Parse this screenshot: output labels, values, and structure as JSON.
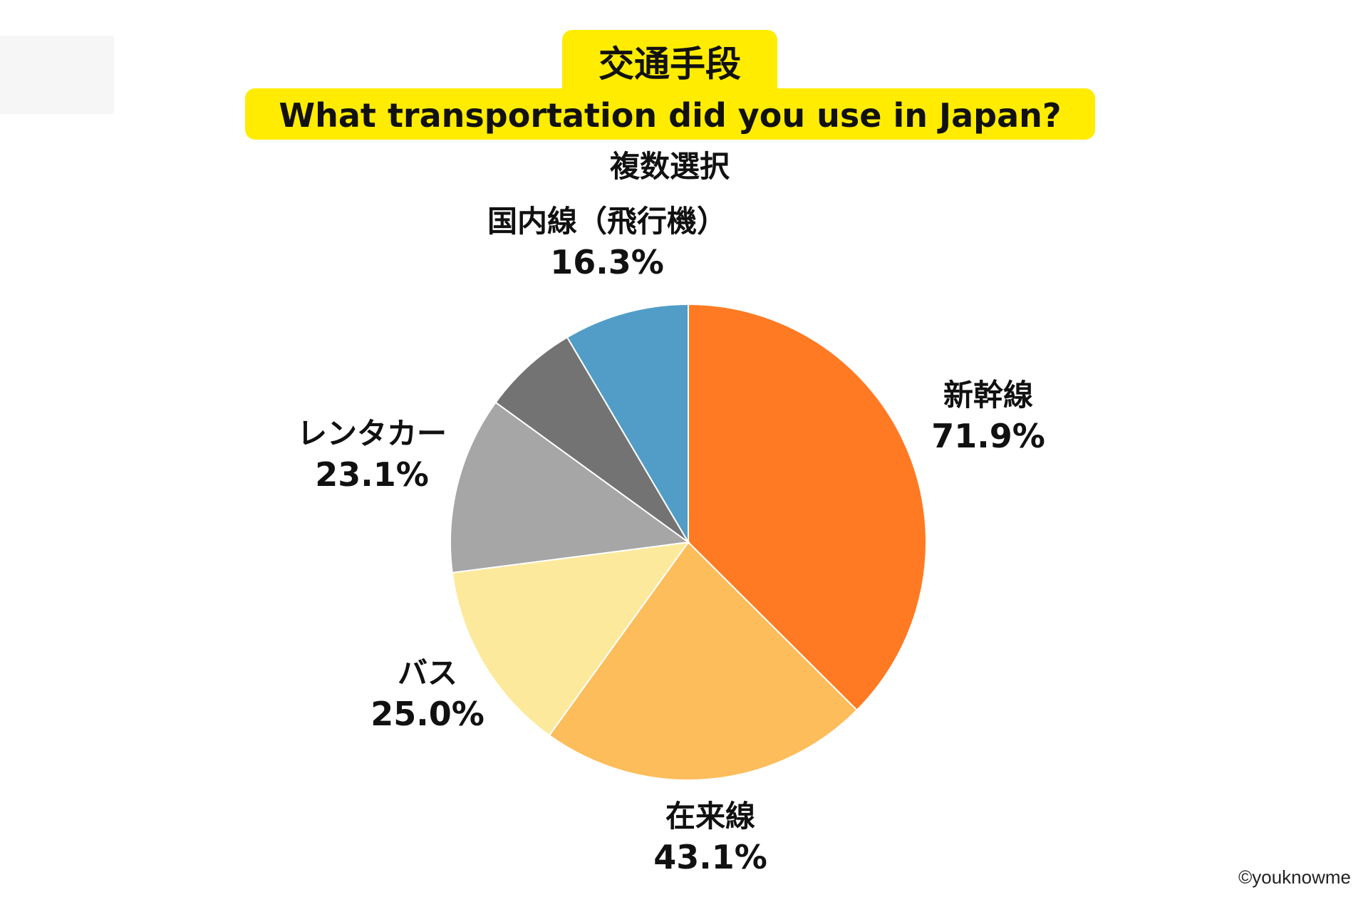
{
  "chart_data": {
    "type": "pie",
    "title": "交通手段",
    "subtitle_en": "What transportation did you use in Japan?",
    "note": "複数選択",
    "slices": [
      {
        "label": "新幹線",
        "value": 71.9,
        "display": "71.9%",
        "color": "#ff7a22"
      },
      {
        "label": "在来線",
        "value": 43.1,
        "display": "43.1%",
        "color": "#fdbd5b"
      },
      {
        "label": "バス",
        "value": 25.0,
        "display": "25.0%",
        "color": "#fde99c"
      },
      {
        "label": "レンタカー",
        "value": 23.1,
        "display": "23.1%",
        "color": "#a6a6a6"
      },
      {
        "label": "",
        "value": 12.5,
        "display": "",
        "color": "#737373"
      },
      {
        "label": "国内線（飛行機）",
        "value": 16.3,
        "display": "16.3%",
        "color": "#529dc7"
      }
    ]
  },
  "copyright": "©youknowme",
  "colors": {
    "title_highlight": "#ffec00"
  }
}
